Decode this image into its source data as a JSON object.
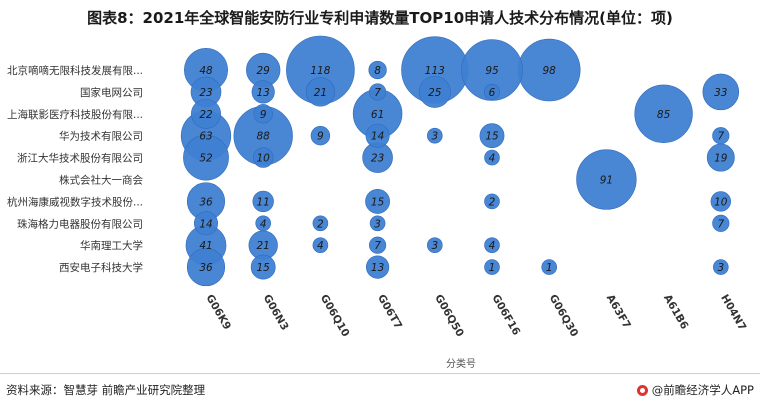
{
  "title": "图表8：2021年全球智能安防行业专利申请数量TOP10申请人技术分布情况(单位：项)",
  "source": "资料来源：智慧芽 前瞻产业研究院整理",
  "brand": "@前瞻经济学人APP",
  "colors": {
    "bubble": "#3f7fd2",
    "bubble_stroke": "#2f6bbd",
    "label": "#1a1a1a",
    "axis_text": "#333333"
  },
  "chart_data": {
    "type": "bubble",
    "xlabel": "分类号",
    "categories": [
      "G06K9",
      "G06N3",
      "G06Q10",
      "G06T7",
      "G06Q50",
      "G06F16",
      "G06Q30",
      "A63F7",
      "A61B6",
      "H04N7"
    ],
    "applicants": [
      "北京嘀嘀无限科技发展有限...",
      "国家电网公司",
      "上海联影医疗科技股份有限...",
      "华为技术有限公司",
      "浙江大华技术股份有限公司",
      "株式会社大一商会",
      "杭州海康威视数字技术股份...",
      "珠海格力电器股份有限公司",
      "华南理工大学",
      "西安电子科技大学"
    ],
    "points": [
      {
        "applicant": 0,
        "category": 0,
        "value": 48
      },
      {
        "applicant": 0,
        "category": 1,
        "value": 29
      },
      {
        "applicant": 0,
        "category": 2,
        "value": 118
      },
      {
        "applicant": 0,
        "category": 3,
        "value": 8
      },
      {
        "applicant": 0,
        "category": 4,
        "value": 113
      },
      {
        "applicant": 0,
        "category": 5,
        "value": 95
      },
      {
        "applicant": 0,
        "category": 6,
        "value": 98
      },
      {
        "applicant": 1,
        "category": 0,
        "value": 23
      },
      {
        "applicant": 1,
        "category": 1,
        "value": 13
      },
      {
        "applicant": 1,
        "category": 2,
        "value": 21
      },
      {
        "applicant": 1,
        "category": 3,
        "value": 7
      },
      {
        "applicant": 1,
        "category": 4,
        "value": 25
      },
      {
        "applicant": 1,
        "category": 5,
        "value": 6
      },
      {
        "applicant": 1,
        "category": 9,
        "value": 33
      },
      {
        "applicant": 2,
        "category": 0,
        "value": 22
      },
      {
        "applicant": 2,
        "category": 1,
        "value": 9
      },
      {
        "applicant": 2,
        "category": 3,
        "value": 61
      },
      {
        "applicant": 2,
        "category": 8,
        "value": 85
      },
      {
        "applicant": 3,
        "category": 0,
        "value": 63
      },
      {
        "applicant": 3,
        "category": 1,
        "value": 88
      },
      {
        "applicant": 3,
        "category": 2,
        "value": 9
      },
      {
        "applicant": 3,
        "category": 3,
        "value": 14
      },
      {
        "applicant": 3,
        "category": 4,
        "value": 3
      },
      {
        "applicant": 3,
        "category": 5,
        "value": 15
      },
      {
        "applicant": 3,
        "category": 9,
        "value": 7
      },
      {
        "applicant": 4,
        "category": 0,
        "value": 52
      },
      {
        "applicant": 4,
        "category": 1,
        "value": 10
      },
      {
        "applicant": 4,
        "category": 3,
        "value": 23
      },
      {
        "applicant": 4,
        "category": 5,
        "value": 4
      },
      {
        "applicant": 4,
        "category": 9,
        "value": 19
      },
      {
        "applicant": 5,
        "category": 7,
        "value": 91
      },
      {
        "applicant": 6,
        "category": 0,
        "value": 36
      },
      {
        "applicant": 6,
        "category": 1,
        "value": 11
      },
      {
        "applicant": 6,
        "category": 3,
        "value": 15
      },
      {
        "applicant": 6,
        "category": 5,
        "value": 2
      },
      {
        "applicant": 6,
        "category": 9,
        "value": 10
      },
      {
        "applicant": 7,
        "category": 0,
        "value": 14
      },
      {
        "applicant": 7,
        "category": 1,
        "value": 4
      },
      {
        "applicant": 7,
        "category": 2,
        "value": 2
      },
      {
        "applicant": 7,
        "category": 3,
        "value": 3
      },
      {
        "applicant": 7,
        "category": 9,
        "value": 7
      },
      {
        "applicant": 8,
        "category": 0,
        "value": 41
      },
      {
        "applicant": 8,
        "category": 1,
        "value": 21
      },
      {
        "applicant": 8,
        "category": 2,
        "value": 4
      },
      {
        "applicant": 8,
        "category": 3,
        "value": 7
      },
      {
        "applicant": 8,
        "category": 4,
        "value": 3
      },
      {
        "applicant": 8,
        "category": 5,
        "value": 4
      },
      {
        "applicant": 9,
        "category": 0,
        "value": 36
      },
      {
        "applicant": 9,
        "category": 1,
        "value": 15
      },
      {
        "applicant": 9,
        "category": 3,
        "value": 13
      },
      {
        "applicant": 9,
        "category": 5,
        "value": 1
      },
      {
        "applicant": 9,
        "category": 6,
        "value": 1
      },
      {
        "applicant": 9,
        "category": 9,
        "value": 3
      }
    ]
  }
}
